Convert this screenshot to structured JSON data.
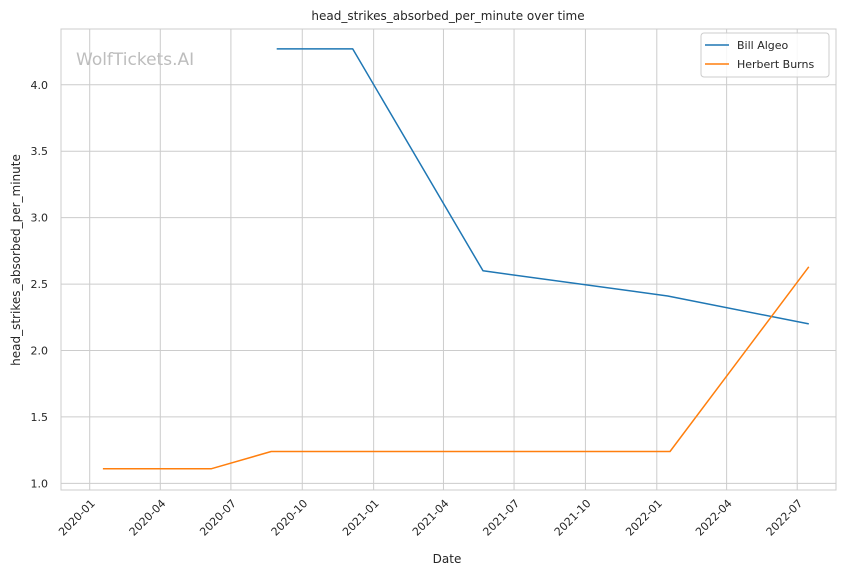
{
  "chart_data": {
    "type": "line",
    "title": "head_strikes_absorbed_per_minute over time",
    "xlabel": "Date",
    "ylabel": "head_strikes_absorbed_per_minute",
    "watermark": "WolfTickets.AI",
    "x_type": "date",
    "xlim": [
      "2019-11-25",
      "2022-08-20"
    ],
    "ylim": [
      0.95,
      4.42
    ],
    "x_ticks": [
      "2020-01-01",
      "2020-04-01",
      "2020-07-01",
      "2020-10-01",
      "2021-01-01",
      "2021-04-01",
      "2021-07-01",
      "2021-10-01",
      "2022-01-01",
      "2022-04-01",
      "2022-07-01"
    ],
    "x_tick_labels": [
      "2020-01",
      "2020-04",
      "2020-07",
      "2020-10",
      "2021-01",
      "2021-04",
      "2021-07",
      "2021-10",
      "2022-01",
      "2022-04",
      "2022-07"
    ],
    "y_ticks": [
      1.0,
      1.5,
      2.0,
      2.5,
      3.0,
      3.5,
      4.0
    ],
    "y_tick_labels": [
      "1.0",
      "1.5",
      "2.0",
      "2.5",
      "3.0",
      "3.5",
      "4.0"
    ],
    "grid": true,
    "legend_position": "top-right",
    "series": [
      {
        "name": "Bill Algeo",
        "color": "#1f77b4",
        "x": [
          "2020-08-29",
          "2020-12-05",
          "2021-05-22",
          "2022-01-15",
          "2022-07-16"
        ],
        "y": [
          4.27,
          4.27,
          2.6,
          2.41,
          2.2
        ]
      },
      {
        "name": "Herbert Burns",
        "color": "#ff7f0e",
        "x": [
          "2020-01-18",
          "2020-06-06",
          "2020-08-22",
          "2022-01-18",
          "2022-07-16"
        ],
        "y": [
          1.11,
          1.11,
          1.24,
          1.24,
          2.63
        ]
      }
    ]
  }
}
